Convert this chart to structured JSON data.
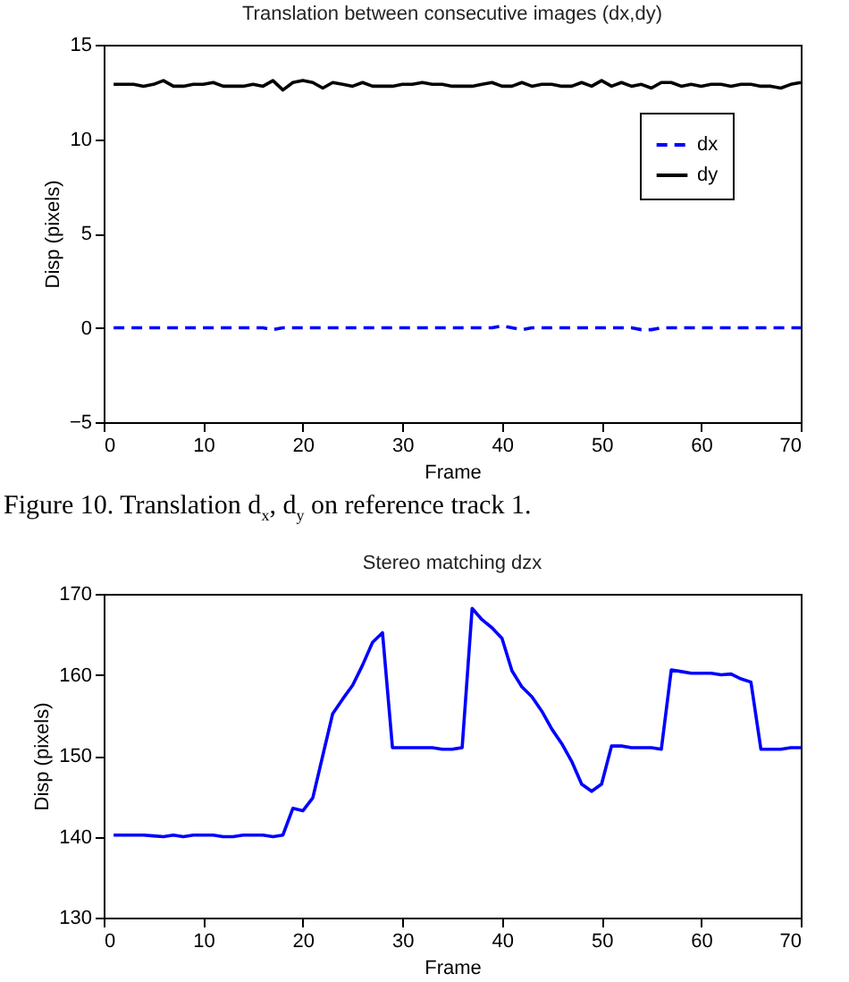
{
  "chart_data": [
    {
      "type": "line",
      "title": "Translation between consecutive images (dx,dy)",
      "xlabel": "Frame",
      "ylabel": "Disp (pixels)",
      "xlim": [
        0,
        70
      ],
      "xticks": [
        0,
        10,
        20,
        30,
        40,
        50,
        60,
        70
      ],
      "ylim": [
        -5,
        15
      ],
      "yticks": [
        -5,
        0,
        5,
        10,
        15
      ],
      "legend": "top right",
      "annotations": [
        "Figure 10. Translation d$_{x}$, d$_{y}$ on reference track 1."
      ],
      "x": [
        1,
        2,
        3,
        4,
        5,
        6,
        7,
        8,
        9,
        10,
        11,
        12,
        13,
        14,
        15,
        16,
        17,
        18,
        19,
        20,
        21,
        22,
        23,
        24,
        25,
        26,
        27,
        28,
        29,
        30,
        31,
        32,
        33,
        34,
        35,
        36,
        37,
        38,
        39,
        40,
        41,
        42,
        43,
        44,
        45,
        46,
        47,
        48,
        49,
        50,
        51,
        52,
        53,
        54,
        55,
        56,
        57,
        58,
        59,
        60,
        61,
        62,
        63,
        64,
        65,
        66,
        67,
        68,
        69,
        70
      ],
      "series": [
        {
          "name": "dx",
          "color": "#0000ff",
          "line_style": "dashed",
          "values": [
            0,
            0,
            0,
            0,
            0,
            0,
            0,
            0,
            0,
            0,
            0,
            0,
            0,
            0,
            0,
            0,
            -0.1,
            0,
            0,
            0,
            0,
            0,
            0,
            0,
            0,
            0,
            0,
            0,
            0,
            0,
            0,
            0,
            0,
            0,
            0,
            0,
            0,
            0,
            0,
            0.1,
            0,
            -0.1,
            0,
            0,
            0,
            0,
            0,
            0,
            0,
            0,
            0,
            0,
            0,
            -0.1,
            -0.1,
            0,
            0,
            0,
            0,
            0,
            0,
            0,
            0,
            0,
            0,
            0,
            0,
            0,
            0,
            0
          ]
        },
        {
          "name": "dy",
          "color": "#000000",
          "line_style": "solid",
          "values": [
            12.9,
            12.9,
            12.9,
            12.8,
            12.9,
            13.1,
            12.8,
            12.8,
            12.9,
            12.9,
            13.0,
            12.8,
            12.8,
            12.8,
            12.9,
            12.8,
            13.1,
            12.6,
            13.0,
            13.1,
            13.0,
            12.7,
            13.0,
            12.9,
            12.8,
            13.0,
            12.8,
            12.8,
            12.8,
            12.9,
            12.9,
            13.0,
            12.9,
            12.9,
            12.8,
            12.8,
            12.8,
            12.9,
            13.0,
            12.8,
            12.8,
            13.0,
            12.8,
            12.9,
            12.9,
            12.8,
            12.8,
            13.0,
            12.8,
            13.1,
            12.8,
            13.0,
            12.8,
            12.9,
            12.7,
            13.0,
            13.0,
            12.8,
            12.9,
            12.8,
            12.9,
            12.9,
            12.8,
            12.9,
            12.9,
            12.8,
            12.8,
            12.7,
            12.9,
            13.0
          ]
        }
      ]
    },
    {
      "type": "line",
      "title": "Stereo matching dzx",
      "xlabel": "Frame",
      "ylabel": "Disp (pixels)",
      "xlim": [
        0,
        70
      ],
      "xticks": [
        0,
        10,
        20,
        30,
        40,
        50,
        60,
        70
      ],
      "ylim": [
        130,
        170
      ],
      "yticks": [
        130,
        140,
        150,
        160,
        170
      ],
      "x": [
        1,
        2,
        3,
        4,
        5,
        6,
        7,
        8,
        9,
        10,
        11,
        12,
        13,
        14,
        15,
        16,
        17,
        18,
        19,
        20,
        21,
        22,
        23,
        24,
        25,
        26,
        27,
        28,
        29,
        30,
        31,
        32,
        33,
        34,
        35,
        36,
        37,
        38,
        39,
        40,
        41,
        42,
        43,
        44,
        45,
        46,
        47,
        48,
        49,
        50,
        51,
        52,
        53,
        54,
        55,
        56,
        57,
        58,
        59,
        60,
        61,
        62,
        63,
        64,
        65,
        66,
        67,
        68,
        69,
        70
      ],
      "series": [
        {
          "color": "#0000ff",
          "line_style": "solid",
          "values": [
            140.2,
            140.2,
            140.2,
            140.2,
            140.1,
            140.0,
            140.2,
            140.0,
            140.2,
            140.2,
            140.2,
            140.0,
            140.0,
            140.2,
            140.2,
            140.2,
            140.0,
            140.2,
            143.5,
            143.2,
            144.8,
            150,
            155.2,
            157,
            158.7,
            161.2,
            164,
            165.2,
            151,
            151,
            151,
            151,
            151,
            150.8,
            150.8,
            151,
            168.2,
            166.8,
            165.8,
            164.5,
            160.5,
            158.5,
            157.3,
            155.5,
            153.3,
            151.5,
            149.3,
            146.5,
            145.6,
            146.5,
            151.2,
            151.2,
            151,
            151,
            151,
            150.8,
            160.6,
            160.4,
            160.2,
            160.2,
            160.2,
            160,
            160.1,
            159.5,
            159.1,
            150.8,
            150.8,
            150.8,
            151,
            151
          ]
        }
      ]
    }
  ]
}
